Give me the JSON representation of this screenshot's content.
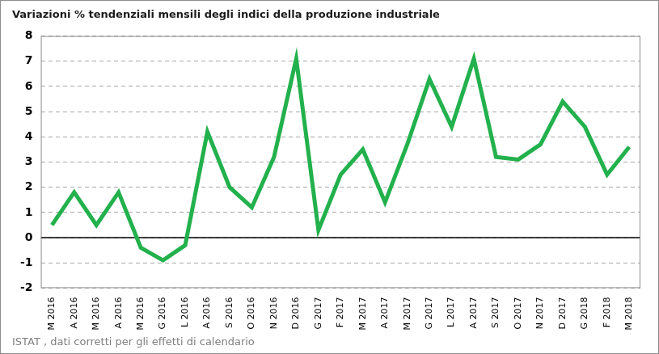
{
  "chart_data": {
    "type": "line",
    "title": "Variazioni % tendenziali mensili degli indici della produzione industriale",
    "source": "ISTAT , dati corretti per gli effetti di calendario",
    "categories": [
      "M 2016",
      "A 2016",
      "M 2016",
      "A 2016",
      "M 2016",
      "G 2016",
      "L 2016",
      "A 2016",
      "S 2016",
      "O 2016",
      "N 2016",
      "D 2016",
      "G 2017",
      "F 2017",
      "M 2017",
      "A 2017",
      "M 2017",
      "G 2017",
      "L 2017",
      "A 2017",
      "S 2017",
      "O 2017",
      "N 2017",
      "D 2017",
      "G 2018",
      "F 2018",
      "M 2018"
    ],
    "values": [
      0.5,
      1.8,
      0.5,
      1.8,
      -0.4,
      -0.9,
      -0.3,
      4.2,
      2.0,
      1.2,
      3.2,
      7.1,
      0.3,
      2.5,
      3.5,
      1.4,
      3.7,
      6.3,
      4.4,
      7.1,
      3.2,
      3.1,
      3.7,
      5.4,
      4.4,
      2.5,
      3.6
    ],
    "color": "#22b14c",
    "ylim": [
      -2,
      8
    ],
    "yticks": [
      -2,
      -1,
      0,
      1,
      2,
      3,
      4,
      5,
      6,
      7,
      8
    ],
    "grid": true
  }
}
